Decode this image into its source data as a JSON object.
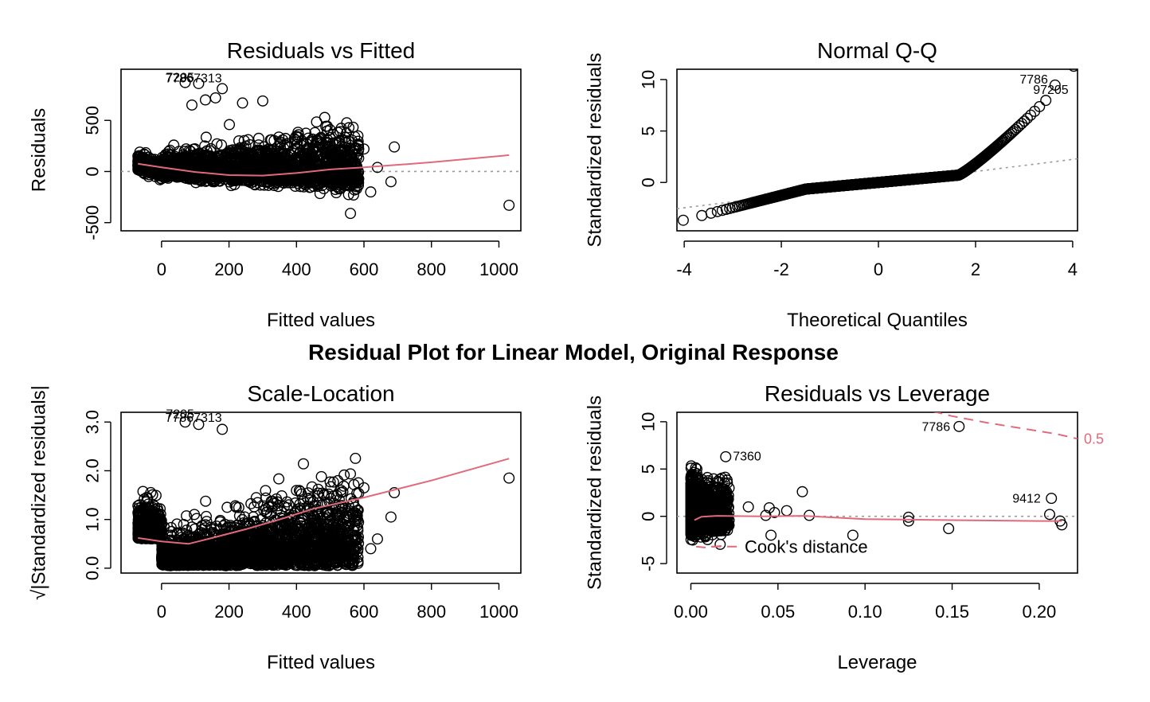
{
  "main_title": "Residual Plot for Linear Model, Original Response",
  "chart_data": [
    {
      "type": "scatter",
      "title": "Residuals vs Fitted",
      "xlabel": "Fitted values",
      "ylabel": "Residuals",
      "xlim": [
        -120,
        1065
      ],
      "ylim": [
        -580,
        1000
      ],
      "xticks": [
        0,
        200,
        400,
        600,
        800,
        1000
      ],
      "yticks": [
        -500,
        0,
        500
      ],
      "cloud": {
        "seed": 11,
        "n": 2600,
        "xmin": -70,
        "xmax": 700,
        "spread_center": 280,
        "lower_fan": true
      },
      "points": [
        {
          "x": 1030,
          "y": -330
        },
        {
          "x": 690,
          "y": 240
        },
        {
          "x": 680,
          "y": -100
        },
        {
          "x": 640,
          "y": 40
        },
        {
          "x": 620,
          "y": -200
        },
        {
          "x": 560,
          "y": -410
        },
        {
          "x": 70,
          "y": 870
        },
        {
          "x": 110,
          "y": 860
        },
        {
          "x": 180,
          "y": 810
        },
        {
          "x": 130,
          "y": 700
        },
        {
          "x": 160,
          "y": 720
        },
        {
          "x": 90,
          "y": 650
        },
        {
          "x": 240,
          "y": 670
        },
        {
          "x": 300,
          "y": 690
        },
        {
          "x": -65,
          "y": 150
        },
        {
          "x": 600,
          "y": 220
        }
      ],
      "smooth": [
        {
          "x": -70,
          "y": 75
        },
        {
          "x": 0,
          "y": 40
        },
        {
          "x": 100,
          "y": -5
        },
        {
          "x": 200,
          "y": -35
        },
        {
          "x": 300,
          "y": -40
        },
        {
          "x": 400,
          "y": -15
        },
        {
          "x": 500,
          "y": 20
        },
        {
          "x": 600,
          "y": 40
        },
        {
          "x": 800,
          "y": 90
        },
        {
          "x": 1030,
          "y": 160
        }
      ],
      "refline": {
        "type": "h",
        "value": 0
      },
      "labels": [
        {
          "text": "77867313",
          "x": 95,
          "y": 870
        },
        {
          "text": "7205",
          "x": 55,
          "y": 880
        }
      ]
    },
    {
      "type": "scatter",
      "title": "Normal Q-Q",
      "xlabel": "Theoretical Quantiles",
      "ylabel": "Standardized residuals",
      "xlim": [
        -4.15,
        4.1
      ],
      "ylim": [
        -4.7,
        11
      ],
      "xticks": [
        -4,
        -2,
        0,
        2,
        4
      ],
      "yticks": [
        0,
        5,
        10
      ],
      "qq": {
        "n": 1200,
        "knee": 1.65,
        "max_q": 3.85
      },
      "refline": {
        "type": "line",
        "x1": -4.15,
        "y1": -2.55,
        "x2": 4.1,
        "y2": 2.3
      },
      "labels": [
        {
          "text": "7786",
          "x": 3.2,
          "y": 9.6
        },
        {
          "text": "97205",
          "x": 3.55,
          "y": 8.6
        }
      ]
    },
    {
      "type": "scatter",
      "title": "Scale-Location",
      "xlabel": "Fitted values",
      "ylabel": "√|Standardized residuals|",
      "xlim": [
        -120,
        1065
      ],
      "ylim": [
        -0.1,
        3.2
      ],
      "xticks": [
        0,
        200,
        400,
        600,
        800,
        1000
      ],
      "yticks": [
        0.0,
        1.0,
        2.0,
        3.0
      ],
      "yticklabels": [
        "0.0",
        "1.0",
        "2.0",
        "3.0"
      ],
      "cloud": {
        "seed": 23,
        "n": 2600,
        "xmin": -70,
        "xmax": 700,
        "spread_center": 280,
        "lower_fan": false
      },
      "points": [
        {
          "x": 1030,
          "y": 1.85
        },
        {
          "x": 690,
          "y": 1.55
        },
        {
          "x": 680,
          "y": 1.05
        },
        {
          "x": 640,
          "y": 0.6
        },
        {
          "x": 620,
          "y": 0.4
        },
        {
          "x": 70,
          "y": 3.0
        },
        {
          "x": 110,
          "y": 2.95
        },
        {
          "x": 180,
          "y": 2.85
        },
        {
          "x": -65,
          "y": 1.3
        },
        {
          "x": 600,
          "y": 1.65
        }
      ],
      "smooth": [
        {
          "x": -70,
          "y": 0.62
        },
        {
          "x": 0,
          "y": 0.55
        },
        {
          "x": 80,
          "y": 0.5
        },
        {
          "x": 150,
          "y": 0.62
        },
        {
          "x": 250,
          "y": 0.8
        },
        {
          "x": 350,
          "y": 1.0
        },
        {
          "x": 450,
          "y": 1.22
        },
        {
          "x": 600,
          "y": 1.45
        },
        {
          "x": 800,
          "y": 1.8
        },
        {
          "x": 1030,
          "y": 2.25
        }
      ],
      "labels": [
        {
          "text": "77867313",
          "x": 95,
          "y": 3.0
        },
        {
          "text": "7205",
          "x": 55,
          "y": 3.08
        }
      ]
    },
    {
      "type": "scatter",
      "title": "Residuals vs Leverage",
      "xlabel": "Leverage",
      "ylabel": "Standardized residuals",
      "xlim": [
        -0.008,
        0.222
      ],
      "ylim": [
        -6,
        11
      ],
      "xticks": [
        0.0,
        0.05,
        0.1,
        0.15,
        0.2
      ],
      "xticklabels": [
        "0.00",
        "0.05",
        "0.10",
        "0.15",
        "0.20"
      ],
      "yticks": [
        -5,
        0,
        5,
        10
      ],
      "points": [
        {
          "x": 0.154,
          "y": 9.5
        },
        {
          "x": 0.02,
          "y": 6.3
        },
        {
          "x": 0.207,
          "y": 1.9
        },
        {
          "x": 0.125,
          "y": -0.1
        },
        {
          "x": 0.125,
          "y": -0.5
        },
        {
          "x": 0.148,
          "y": -1.3
        },
        {
          "x": 0.093,
          "y": -2.0
        },
        {
          "x": 0.212,
          "y": -0.5
        },
        {
          "x": 0.213,
          "y": -0.9
        },
        {
          "x": 0.206,
          "y": 0.2
        },
        {
          "x": 0.064,
          "y": 2.6
        },
        {
          "x": 0.068,
          "y": 0.1
        },
        {
          "x": 0.055,
          "y": 0.6
        },
        {
          "x": 0.045,
          "y": 0.9
        },
        {
          "x": 0.046,
          "y": -2.0
        },
        {
          "x": 0.043,
          "y": 0.1
        },
        {
          "x": 0.048,
          "y": 0.4
        },
        {
          "x": 0.033,
          "y": 1.0
        }
      ],
      "smooth": [
        {
          "x": 0.002,
          "y": -0.4
        },
        {
          "x": 0.006,
          "y": -0.05
        },
        {
          "x": 0.015,
          "y": 0.05
        },
        {
          "x": 0.04,
          "y": 0.0
        },
        {
          "x": 0.065,
          "y": 0.05
        },
        {
          "x": 0.1,
          "y": -0.3
        },
        {
          "x": 0.15,
          "y": -0.4
        },
        {
          "x": 0.2,
          "y": -0.5
        },
        {
          "x": 0.213,
          "y": -0.5
        }
      ],
      "refline": {
        "type": "h",
        "value": 0
      },
      "cook_top": [
        {
          "x": 0.13,
          "y": 11.5
        },
        {
          "x": 0.15,
          "y": 10.6
        },
        {
          "x": 0.17,
          "y": 9.9
        },
        {
          "x": 0.19,
          "y": 9.3
        },
        {
          "x": 0.21,
          "y": 8.7
        },
        {
          "x": 0.222,
          "y": 8.2
        }
      ],
      "cook_bottom": [
        {
          "x": 0.003,
          "y": -3.2
        },
        {
          "x": 0.008,
          "y": -3.3
        },
        {
          "x": 0.014,
          "y": -3.2
        },
        {
          "x": 0.019,
          "y": -3.1
        }
      ],
      "cook_level": "0.5",
      "cook_legend": "Cook's distance",
      "labels": [
        {
          "text": "7786",
          "x": 0.153,
          "y": 9.5
        },
        {
          "text": "7360",
          "x": 0.02,
          "y": 6.4
        },
        {
          "text": "9412",
          "x": 0.205,
          "y": 1.9
        }
      ]
    }
  ]
}
